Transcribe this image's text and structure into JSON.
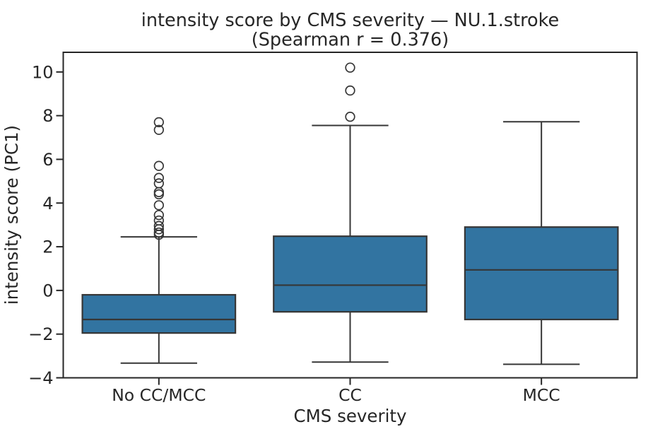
{
  "chart_data": {
    "type": "box",
    "title_lines": [
      "intensity score by CMS severity — NU.1.stroke",
      "(Spearman r = 0.376)"
    ],
    "xlabel": "CMS severity",
    "ylabel": "intensity score (PC1)",
    "categories": [
      "No CC/MCC",
      "CC",
      "MCC"
    ],
    "ylim": [
      -4,
      10.9
    ],
    "yticks": [
      -4,
      -2,
      0,
      2,
      4,
      6,
      8,
      10
    ],
    "grid": false,
    "legend": null,
    "boxes": [
      {
        "category": "No CC/MCC",
        "whisker_low": -3.33,
        "q1": -1.95,
        "median": -1.33,
        "q3": -0.2,
        "whisker_high": 2.45,
        "outliers": [
          2.55,
          2.65,
          2.8,
          2.95,
          3.2,
          3.45,
          3.9,
          4.4,
          4.5,
          4.9,
          5.15,
          5.7,
          7.35,
          7.7
        ]
      },
      {
        "category": "CC",
        "whisker_low": -3.28,
        "q1": -0.98,
        "median": 0.24,
        "q3": 2.48,
        "whisker_high": 7.55,
        "outliers": [
          7.95,
          9.15,
          10.2
        ]
      },
      {
        "category": "MCC",
        "whisker_low": -3.38,
        "q1": -1.33,
        "median": 0.94,
        "q3": 2.9,
        "whisker_high": 7.72,
        "outliers": []
      }
    ],
    "colors": {
      "box_fill": "#3274A1",
      "box_line": "#363636",
      "axis": "#262626",
      "text": "#262626",
      "background": "#FFFFFF"
    }
  }
}
